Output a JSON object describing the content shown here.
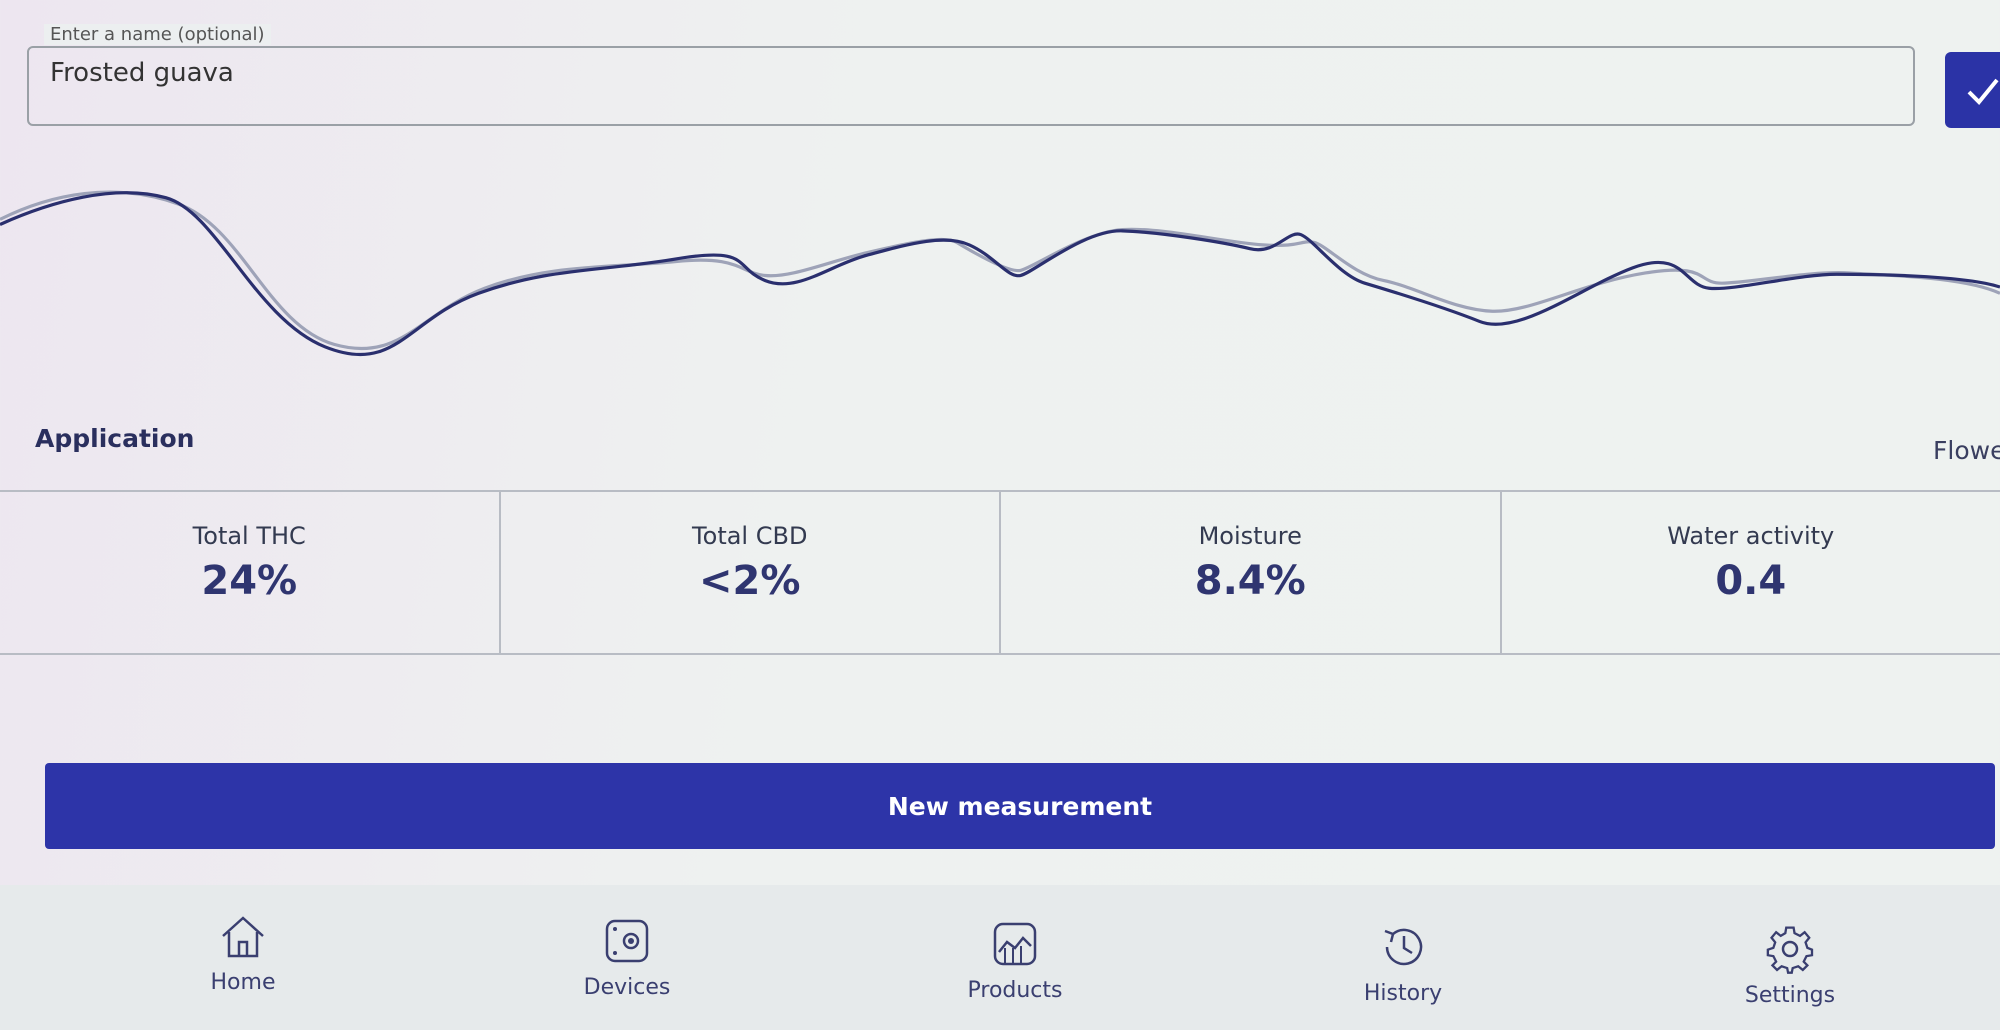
{
  "name_field": {
    "label": "Enter a name (optional)",
    "value": "Frosted guava"
  },
  "application": {
    "label": "Application",
    "value": "Flower"
  },
  "metrics": [
    {
      "label": "Total THC",
      "value": "24%"
    },
    {
      "label": "Total CBD",
      "value": "<2%"
    },
    {
      "label": "Moisture",
      "value": "8.4%"
    },
    {
      "label": "Water activity",
      "value": "0.4"
    }
  ],
  "button": "New measurement",
  "nav": [
    "Home",
    "Devices",
    "Products",
    "History",
    "Settings"
  ]
}
